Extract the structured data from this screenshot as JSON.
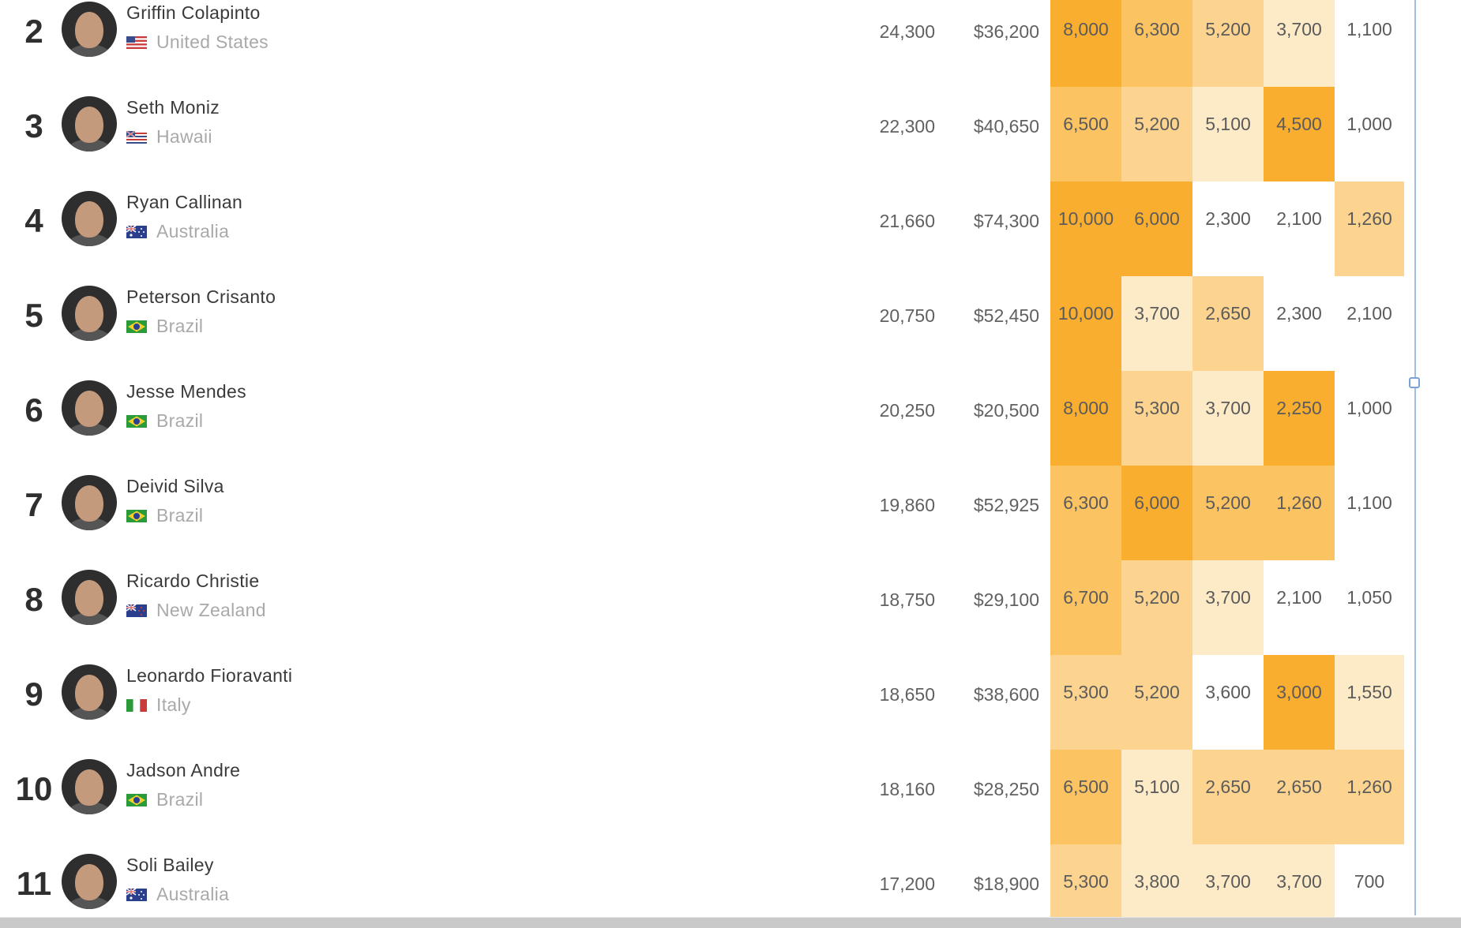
{
  "rows": [
    {
      "rank": "2",
      "name": "Griffin Colapinto",
      "country": "United States",
      "flag": "us-flag",
      "points": "24,300",
      "prize": "$36,200",
      "results": [
        {
          "v": "8,000",
          "h": 4
        },
        {
          "v": "6,300",
          "h": 3
        },
        {
          "v": "5,200",
          "h": 2
        },
        {
          "v": "3,700",
          "h": 1
        },
        {
          "v": "1,100",
          "h": 0
        }
      ]
    },
    {
      "rank": "3",
      "name": "Seth Moniz",
      "country": "Hawaii",
      "flag": "hawaii-flag",
      "points": "22,300",
      "prize": "$40,650",
      "results": [
        {
          "v": "6,500",
          "h": 3
        },
        {
          "v": "5,200",
          "h": 2
        },
        {
          "v": "5,100",
          "h": 1
        },
        {
          "v": "4,500",
          "h": 4
        },
        {
          "v": "1,000",
          "h": 0
        }
      ]
    },
    {
      "rank": "4",
      "name": "Ryan Callinan",
      "country": "Australia",
      "flag": "australia-flag",
      "points": "21,660",
      "prize": "$74,300",
      "results": [
        {
          "v": "10,000",
          "h": 4
        },
        {
          "v": "6,000",
          "h": 4
        },
        {
          "v": "2,300",
          "h": 0
        },
        {
          "v": "2,100",
          "h": 0
        },
        {
          "v": "1,260",
          "h": 2
        }
      ]
    },
    {
      "rank": "5",
      "name": "Peterson Crisanto",
      "country": "Brazil",
      "flag": "brazil-flag",
      "points": "20,750",
      "prize": "$52,450",
      "results": [
        {
          "v": "10,000",
          "h": 4
        },
        {
          "v": "3,700",
          "h": 1
        },
        {
          "v": "2,650",
          "h": 2
        },
        {
          "v": "2,300",
          "h": 0
        },
        {
          "v": "2,100",
          "h": 0
        }
      ]
    },
    {
      "rank": "6",
      "name": "Jesse Mendes",
      "country": "Brazil",
      "flag": "brazil-flag",
      "points": "20,250",
      "prize": "$20,500",
      "results": [
        {
          "v": "8,000",
          "h": 4
        },
        {
          "v": "5,300",
          "h": 2
        },
        {
          "v": "3,700",
          "h": 1
        },
        {
          "v": "2,250",
          "h": 4
        },
        {
          "v": "1,000",
          "h": 0
        }
      ]
    },
    {
      "rank": "7",
      "name": "Deivid Silva",
      "country": "Brazil",
      "flag": "brazil-flag",
      "points": "19,860",
      "prize": "$52,925",
      "results": [
        {
          "v": "6,300",
          "h": 3
        },
        {
          "v": "6,000",
          "h": 4
        },
        {
          "v": "5,200",
          "h": 3
        },
        {
          "v": "1,260",
          "h": 3
        },
        {
          "v": "1,100",
          "h": 0
        }
      ]
    },
    {
      "rank": "8",
      "name": "Ricardo Christie",
      "country": "New Zealand",
      "flag": "new-zealand-flag",
      "points": "18,750",
      "prize": "$29,100",
      "results": [
        {
          "v": "6,700",
          "h": 3
        },
        {
          "v": "5,200",
          "h": 2
        },
        {
          "v": "3,700",
          "h": 1
        },
        {
          "v": "2,100",
          "h": 0
        },
        {
          "v": "1,050",
          "h": 0
        }
      ]
    },
    {
      "rank": "9",
      "name": "Leonardo Fioravanti",
      "country": "Italy",
      "flag": "italy-flag",
      "points": "18,650",
      "prize": "$38,600",
      "results": [
        {
          "v": "5,300",
          "h": 2
        },
        {
          "v": "5,200",
          "h": 2
        },
        {
          "v": "3,600",
          "h": 0
        },
        {
          "v": "3,000",
          "h": 4
        },
        {
          "v": "1,550",
          "h": 1
        }
      ]
    },
    {
      "rank": "10",
      "name": "Jadson Andre",
      "country": "Brazil",
      "flag": "brazil-flag",
      "points": "18,160",
      "prize": "$28,250",
      "results": [
        {
          "v": "6,500",
          "h": 3
        },
        {
          "v": "5,100",
          "h": 1
        },
        {
          "v": "2,650",
          "h": 2
        },
        {
          "v": "2,650",
          "h": 2
        },
        {
          "v": "1,260",
          "h": 2
        }
      ]
    },
    {
      "rank": "11",
      "name": "Soli Bailey",
      "country": "Australia",
      "flag": "australia-flag",
      "points": "17,200",
      "prize": "$18,900",
      "results": [
        {
          "v": "5,300",
          "h": 2
        },
        {
          "v": "3,800",
          "h": 1
        },
        {
          "v": "3,700",
          "h": 1
        },
        {
          "v": "3,700",
          "h": 1
        },
        {
          "v": "700",
          "h": 0
        }
      ]
    }
  ],
  "heat_colors": [
    "#ffffff",
    "#fdebc8",
    "#fcd48f",
    "#fbc361",
    "#f9ae30"
  ],
  "selection_color": "#9fbfe5"
}
